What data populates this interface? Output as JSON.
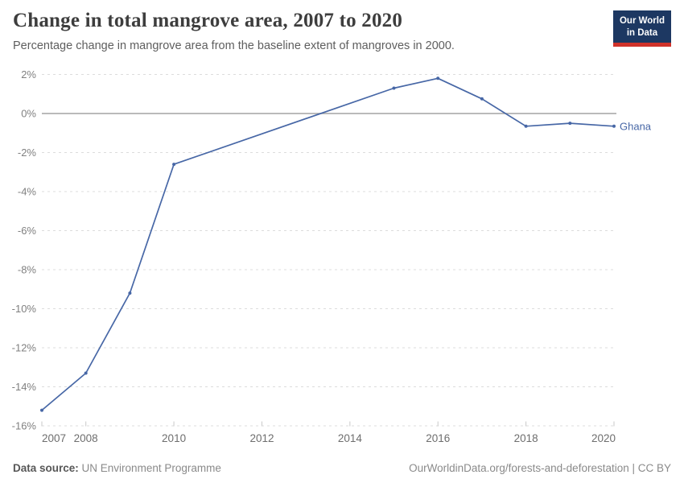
{
  "header": {
    "title": "Change in total mangrove area, 2007 to 2020",
    "subtitle": "Percentage change in mangrove area from the baseline extent of mangroves in 2000.",
    "logo": {
      "line1": "Our World",
      "line2": "in Data"
    }
  },
  "footer": {
    "datasource_label": "Data source:",
    "datasource_value": "UN Environment Programme",
    "attribution": "OurWorldinData.org/forests-and-deforestation | CC BY"
  },
  "chart_data": {
    "type": "line",
    "title": "Change in total mangrove area, 2007 to 2020",
    "subtitle": "Percentage change in mangrove area from the baseline extent of mangroves in 2000.",
    "xlabel": "",
    "ylabel": "",
    "xlim": [
      2007,
      2020
    ],
    "ylim": [
      -16,
      2
    ],
    "yticks": [
      2,
      0,
      -2,
      -4,
      -6,
      -8,
      -10,
      -12,
      -14,
      -16
    ],
    "ytick_suffix": "%",
    "xticks": [
      2007,
      2008,
      2010,
      2012,
      2014,
      2016,
      2018,
      2020
    ],
    "grid": "horizontal-dashed",
    "zero_line": true,
    "legend_position": "end-of-line",
    "series": [
      {
        "name": "Ghana",
        "color": "#4767a6",
        "points": [
          {
            "x": 2007,
            "y": -15.2
          },
          {
            "x": 2008,
            "y": -13.3
          },
          {
            "x": 2009,
            "y": -9.2
          },
          {
            "x": 2010,
            "y": -2.6
          },
          {
            "x": 2015,
            "y": 1.3
          },
          {
            "x": 2016,
            "y": 1.8
          },
          {
            "x": 2017,
            "y": 0.75
          },
          {
            "x": 2018,
            "y": -0.65
          },
          {
            "x": 2019,
            "y": -0.5
          },
          {
            "x": 2020,
            "y": -0.65
          }
        ]
      }
    ]
  },
  "colors": {
    "line": "#4767a6",
    "grid": "#dcdcdc",
    "zero_line": "#a3a3a3",
    "y_label": "#808080",
    "x_label": "#6e6e6e",
    "tick_mark": "#c9c9c9",
    "logo_bg": "#1d3862",
    "logo_stripe": "#d0322a"
  }
}
